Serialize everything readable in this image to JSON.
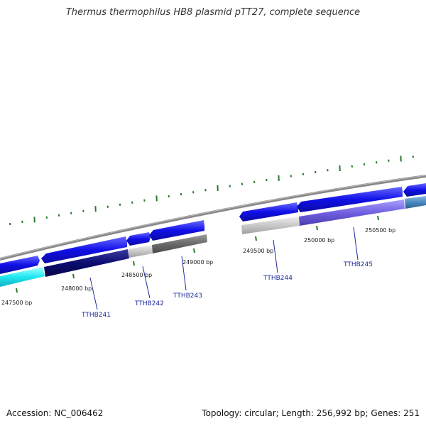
{
  "title": "Thermus thermophilus HB8 plasmid pTT27, complete sequence",
  "footer": {
    "accession": "Accession: NC_006462",
    "summary": "Topology: circular; Length: 256,992 bp; Genes: 251"
  },
  "colors": {
    "backbone": "#8a8a8a",
    "forward_gene": "#1414e6",
    "tick": "#2a7a2a",
    "gene_label": "#1a2a9a"
  },
  "position_labels": [
    "247500 bp",
    "248000 bp",
    "248500 bp",
    "249000 bp",
    "249500 bp",
    "250000 bp",
    "250500 bp"
  ],
  "gene_labels": [
    "TTHB241",
    "TTHB242",
    "TTHB243",
    "TTHB244",
    "TTHB245"
  ]
}
